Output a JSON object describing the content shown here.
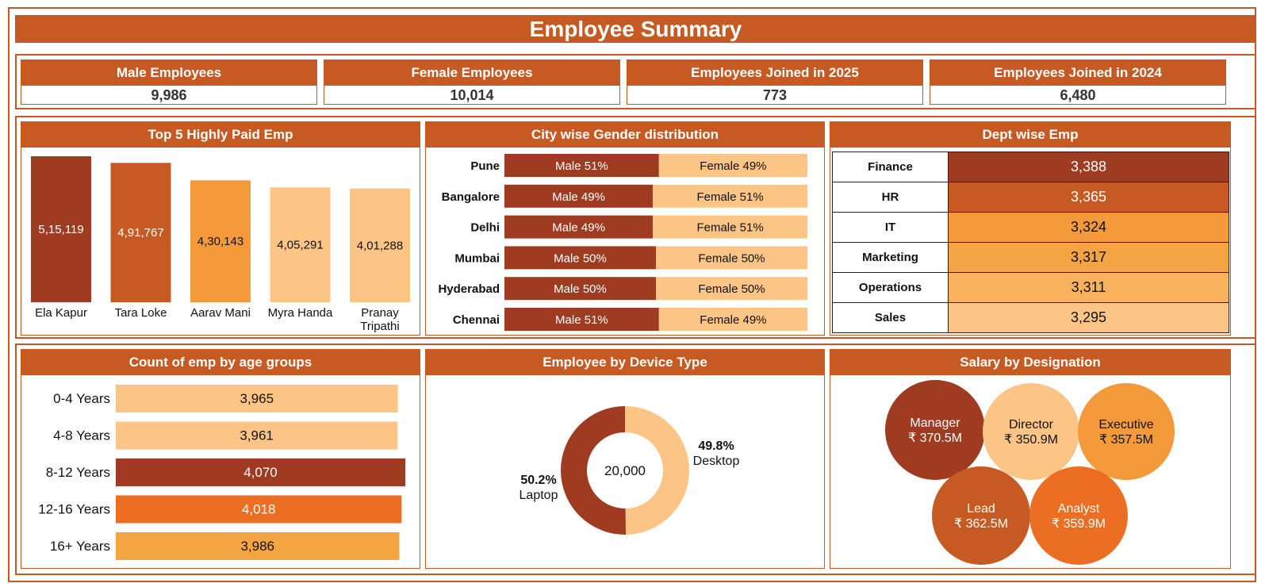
{
  "title": "Employee Summary",
  "kpis": [
    {
      "label": "Male Employees",
      "value": "9,986"
    },
    {
      "label": "Female Employees",
      "value": "10,014"
    },
    {
      "label": "Employees Joined in 2025",
      "value": "773"
    },
    {
      "label": "Employees Joined in 2024",
      "value": "6,480"
    }
  ],
  "colors": {
    "dark": "#9e3b21",
    "primary": "#c65a22",
    "mid": "#f49a3a",
    "light": "#fdc585",
    "bright": "#ec6e23"
  },
  "chart_data": [
    {
      "type": "bar",
      "title": "Top 5 Highly Paid Emp",
      "categories": [
        "Ela Kapur",
        "Tara Loke",
        "Aarav Mani",
        "Myra Handa",
        "Pranay Tripathi"
      ],
      "values": [
        515119,
        491767,
        430143,
        405291,
        401288
      ],
      "labels": [
        "5,15,119",
        "4,91,767",
        "4,30,143",
        "4,05,291",
        "4,01,288"
      ],
      "colors": [
        "#9e3b21",
        "#c65a22",
        "#f49a3a",
        "#fdc585",
        "#fdc585"
      ]
    },
    {
      "type": "bar",
      "orientation": "horizontal-stacked",
      "title": "City wise Gender distribution",
      "categories": [
        "Pune",
        "Bangalore",
        "Delhi",
        "Mumbai",
        "Hyderabad",
        "Chennai"
      ],
      "series": [
        {
          "name": "Male",
          "values": [
            51,
            49,
            49,
            50,
            50,
            51
          ],
          "color": "#9e3b21"
        },
        {
          "name": "Female",
          "values": [
            49,
            51,
            51,
            50,
            50,
            49
          ],
          "color": "#fdc585"
        }
      ]
    },
    {
      "type": "table",
      "title": "Dept wise Emp",
      "rows": [
        {
          "dept": "Finance",
          "value": "3,388",
          "color": "#9e3b21",
          "text_color": "#ffffff"
        },
        {
          "dept": "HR",
          "value": "3,365",
          "color": "#c65a22",
          "text_color": "#ffffff"
        },
        {
          "dept": "IT",
          "value": "3,324",
          "color": "#f49a3a",
          "text_color": "#111111"
        },
        {
          "dept": "Marketing",
          "value": "3,317",
          "color": "#f5a444",
          "text_color": "#111111"
        },
        {
          "dept": "Operations",
          "value": "3,311",
          "color": "#f8b25e",
          "text_color": "#111111"
        },
        {
          "dept": "Sales",
          "value": "3,295",
          "color": "#fdc585",
          "text_color": "#111111"
        }
      ]
    },
    {
      "type": "bar",
      "orientation": "horizontal",
      "title": "Count of emp by age groups",
      "categories": [
        "0-4 Years",
        "4-8 Years",
        "8-12 Years",
        "12-16 Years",
        "16+ Years"
      ],
      "values": [
        3965,
        3961,
        4070,
        4018,
        3986
      ],
      "labels": [
        "3,965",
        "3,961",
        "4,070",
        "4,018",
        "3,986"
      ],
      "colors": [
        "#fdc585",
        "#fdc585",
        "#9e3b21",
        "#ec6e23",
        "#f5a444"
      ],
      "label_colors": [
        "#111111",
        "#111111",
        "#ffffff",
        "#ffffff",
        "#111111"
      ]
    },
    {
      "type": "pie",
      "title": "Employee by Device Type",
      "center_label": "20,000",
      "slices": [
        {
          "name": "Laptop",
          "value": 50.2,
          "label": "50.2%",
          "color": "#9e3b21"
        },
        {
          "name": "Desktop",
          "value": 49.8,
          "label": "49.8%",
          "color": "#fdc585"
        }
      ]
    },
    {
      "type": "bubble",
      "title": "Salary by Designation",
      "items": [
        {
          "name": "Manager",
          "value": 370.5,
          "label": "₹ 370.5M",
          "color": "#9e3b21",
          "text_color": "#ffffff"
        },
        {
          "name": "Director",
          "value": 350.9,
          "label": "₹ 350.9M",
          "color": "#fdc585",
          "text_color": "#111111"
        },
        {
          "name": "Executive",
          "value": 357.5,
          "label": "₹ 357.5M",
          "color": "#f49a3a",
          "text_color": "#111111"
        },
        {
          "name": "Lead",
          "value": 362.5,
          "label": "₹ 362.5M",
          "color": "#c65a22",
          "text_color": "#ffffff"
        },
        {
          "name": "Analyst",
          "value": 359.9,
          "label": "₹ 359.9M",
          "color": "#ec6e23",
          "text_color": "#ffffff"
        }
      ]
    }
  ]
}
